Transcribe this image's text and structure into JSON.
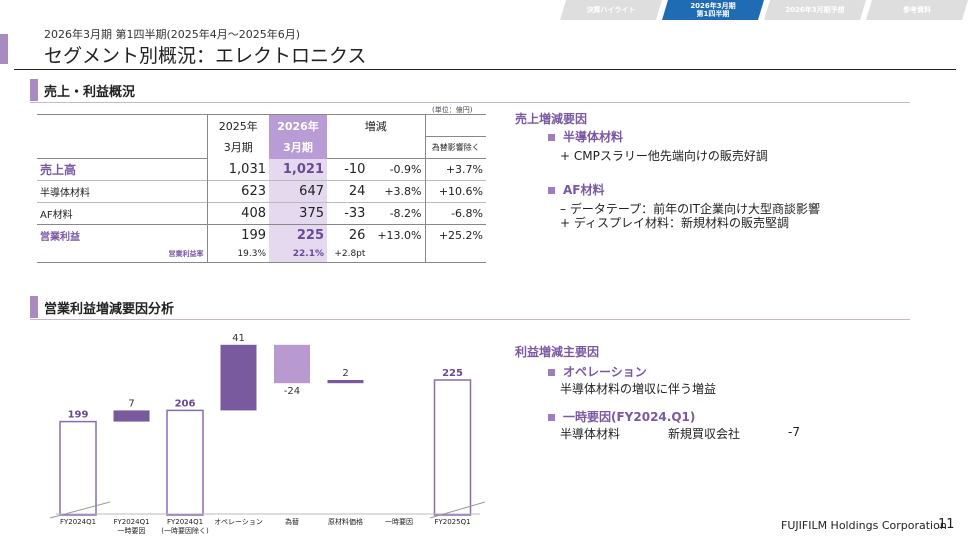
{
  "nav": {
    "tabs": [
      {
        "label": "決算ハイライト",
        "active": false
      },
      {
        "label": "2026年3月期\n第1四半期",
        "active": true
      },
      {
        "label": "2026年3月期予想",
        "active": false
      },
      {
        "label": "参考資料",
        "active": false
      }
    ]
  },
  "header": {
    "subtitle": "2026年3月期 第1四半期(2025年4月～2025年6月)",
    "title": "セグメント別概況：エレクトロニクス"
  },
  "section1": {
    "title": "売上・利益概況",
    "unit": "(単位：億円)"
  },
  "table": {
    "col_prev_line1": "2025年",
    "col_prev_line2": "3月期",
    "col_curr_line1": "2026年",
    "col_curr_line2": "3月期",
    "col_change": "増減",
    "col_fx": "為替影響除く",
    "rows": [
      {
        "label": "売上高",
        "prev": "1,031",
        "curr": "1,021",
        "diff": "-10",
        "pct": "-0.9%",
        "fx": "+3.7%"
      },
      {
        "label": "半導体材料",
        "prev": "623",
        "curr": "647",
        "diff": "24",
        "pct": "+3.8%",
        "fx": "+10.6%"
      },
      {
        "label": "AF材料",
        "prev": "408",
        "curr": "375",
        "diff": "-33",
        "pct": "-8.2%",
        "fx": "-6.8%"
      },
      {
        "label": "営業利益",
        "prev": "199",
        "curr": "225",
        "diff": "26",
        "pct": "+13.0%",
        "fx": "+25.2%"
      },
      {
        "label": "営業利益率",
        "prev": "19.3%",
        "curr": "22.1%",
        "diff": "+2.8pt",
        "pct": "",
        "fx": ""
      }
    ]
  },
  "sales_factors": {
    "title": "売上増減要因",
    "groups": [
      {
        "heading": "半導体材料",
        "items": [
          "+ CMPスラリー他先端向けの販売好調"
        ]
      },
      {
        "heading": "AF材料",
        "items": [
          "– データテープ：前年のIT企業向け大型商談影響",
          "+ ディスプレイ材料：新規材料の販売堅調"
        ]
      }
    ]
  },
  "section2": {
    "title": "営業利益増減要因分析"
  },
  "profit_factors": {
    "title": "利益増減主要因",
    "op_heading": "オペレーション",
    "op_text": "半導体材料の増収に伴う増益",
    "one_heading": "一時要因(FY2024.Q1)",
    "one_col1": "半導体材料",
    "one_col2": "新規買収会社",
    "one_col3": "-7"
  },
  "chart_data": {
    "type": "bar",
    "subtype": "waterfall",
    "categories": [
      "FY2024Q1",
      "FY2024Q1\n一時要因",
      "FY2024Q1\n(一時要因除く)",
      "オペレーション",
      "為替",
      "原材料価格",
      "一時要因",
      "FY2025Q1"
    ],
    "values": [
      199,
      7,
      206,
      41,
      -24,
      2,
      0,
      225
    ],
    "labels": [
      "199",
      "7",
      "206",
      "41",
      "-24",
      "2",
      "",
      "225"
    ],
    "kinds": [
      "total",
      "delta",
      "total",
      "delta",
      "delta",
      "delta",
      "delta",
      "total"
    ],
    "colors": {
      "total_stroke": "#8a6bb0",
      "delta_dark": "#7a5a9e",
      "delta_light": "#b89ad0",
      "label_total": "#6a4a94"
    }
  },
  "footer": {
    "company": "FUJIFILM Holdings Corporation",
    "page": "11"
  }
}
